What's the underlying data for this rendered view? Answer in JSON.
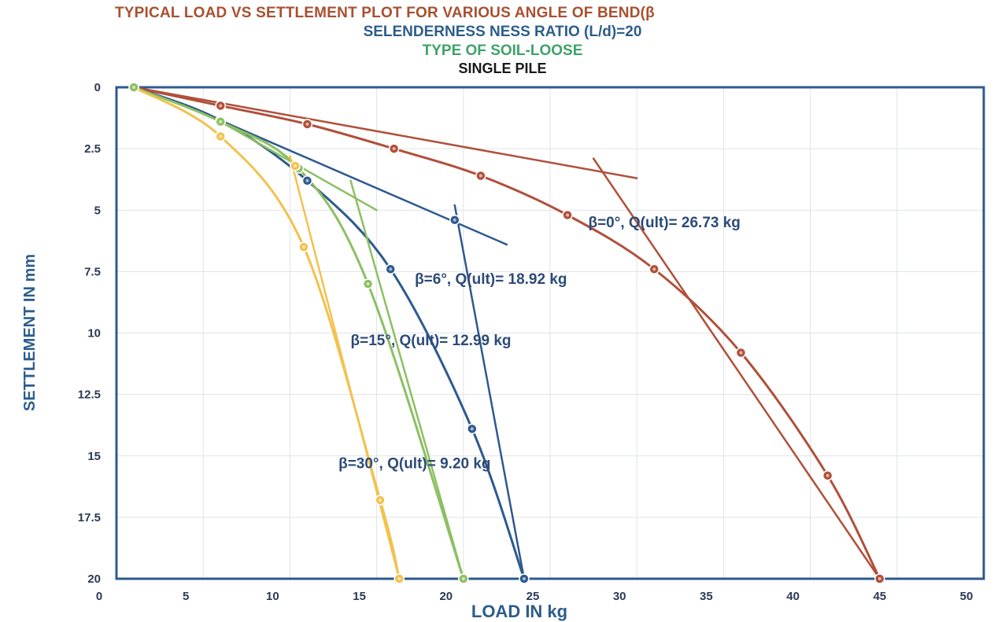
{
  "titles": {
    "line1": "TYPICAL LOAD VS SETTLEMENT PLOT FOR VARIOUS ANGLE OF BEND(β",
    "line2": "SELENDERNESS NESS RATIO (L/d)=20",
    "line3": "TYPE OF SOIL-LOOSE",
    "line4": "SINGLE PILE"
  },
  "colors": {
    "beta0": "#b0503a",
    "beta6": "#2e5a8f",
    "beta15": "#8cc063",
    "beta30": "#f2c24f",
    "grid": "#dfe3ea",
    "axis": "#2e5a8f"
  },
  "chart_data": {
    "type": "line",
    "title": "TYPICAL LOAD VS SETTLEMENT PLOT FOR VARIOUS ANGLE OF BEND(β",
    "xlabel": "LOAD IN kg",
    "ylabel": "SETTLEMENT IN mm",
    "xlim": [
      0,
      50
    ],
    "ylim": [
      0,
      20
    ],
    "y_inverted": true,
    "grid": true,
    "x_ticks": [
      "0",
      "5",
      "10",
      "15",
      "20",
      "25",
      "30",
      "35",
      "40",
      "45",
      "50"
    ],
    "y_ticks": [
      "0",
      "2.5",
      "5",
      "7.5",
      "10",
      "12.5",
      "15",
      "17.5",
      "20"
    ],
    "series": [
      {
        "key": "beta0",
        "points": [
          [
            1,
            0
          ],
          [
            6,
            0.75
          ],
          [
            11,
            1.5
          ],
          [
            16,
            2.5
          ],
          [
            21,
            3.6
          ],
          [
            26,
            5.2
          ],
          [
            31,
            7.4
          ],
          [
            36,
            10.8
          ],
          [
            41,
            15.8
          ],
          [
            44,
            20
          ]
        ],
        "tangents": [
          [
            [
              1,
              0
            ],
            [
              30,
              3.7
            ]
          ],
          [
            [
              27.5,
              2.9
            ],
            [
              44,
              20
            ]
          ]
        ]
      },
      {
        "key": "beta6",
        "points": [
          [
            1,
            0
          ],
          [
            6,
            1.35
          ],
          [
            11,
            3.8
          ],
          [
            15.8,
            7.4
          ],
          [
            20.5,
            13.9
          ],
          [
            23.5,
            20
          ]
        ],
        "marked": [
          [
            6,
            1.35
          ],
          [
            11,
            3.8
          ],
          [
            19.5,
            5.4
          ],
          [
            15.8,
            7.4
          ],
          [
            20.5,
            13.9
          ],
          [
            23.5,
            20
          ]
        ],
        "tangents": [
          [
            [
              6,
              1.35
            ],
            [
              22.5,
              6.4
            ]
          ],
          [
            [
              19.5,
              4.8
            ],
            [
              23.5,
              20
            ]
          ]
        ]
      },
      {
        "key": "beta15",
        "points": [
          [
            1,
            0
          ],
          [
            6,
            1.4
          ],
          [
            10.5,
            3.3
          ],
          [
            14.5,
            8.0
          ],
          [
            20,
            20
          ]
        ],
        "tangents": [
          [
            [
              6,
              1.4
            ],
            [
              15,
              5.0
            ]
          ],
          [
            [
              13.5,
              3.8
            ],
            [
              20,
              20
            ]
          ]
        ]
      },
      {
        "key": "beta30",
        "points": [
          [
            1,
            0
          ],
          [
            6,
            2.0
          ],
          [
            10.8,
            6.5
          ],
          [
            15.2,
            16.8
          ],
          [
            16.3,
            20
          ]
        ],
        "marked": [
          [
            6,
            2.0
          ],
          [
            10.3,
            3.2
          ],
          [
            10.8,
            6.5
          ],
          [
            15.2,
            16.8
          ],
          [
            16.3,
            20
          ]
        ],
        "tangents": [
          [
            [
              10.0,
              2.8
            ],
            [
              16.3,
              20
            ]
          ]
        ]
      }
    ],
    "annotations": [
      {
        "text": "β=0°, Q(ult)= 26.73 kg",
        "x": 27.2,
        "y": 5.7
      },
      {
        "text": "β=6°, Q(ult)= 18.92 kg",
        "x": 17.2,
        "y": 8.0
      },
      {
        "text": "β=15°, Q(ult)= 12.99 kg",
        "x": 13.5,
        "y": 10.5
      },
      {
        "text": "β=30°, Q(ult)= 9.20 kg",
        "x": 12.8,
        "y": 15.5
      }
    ]
  }
}
